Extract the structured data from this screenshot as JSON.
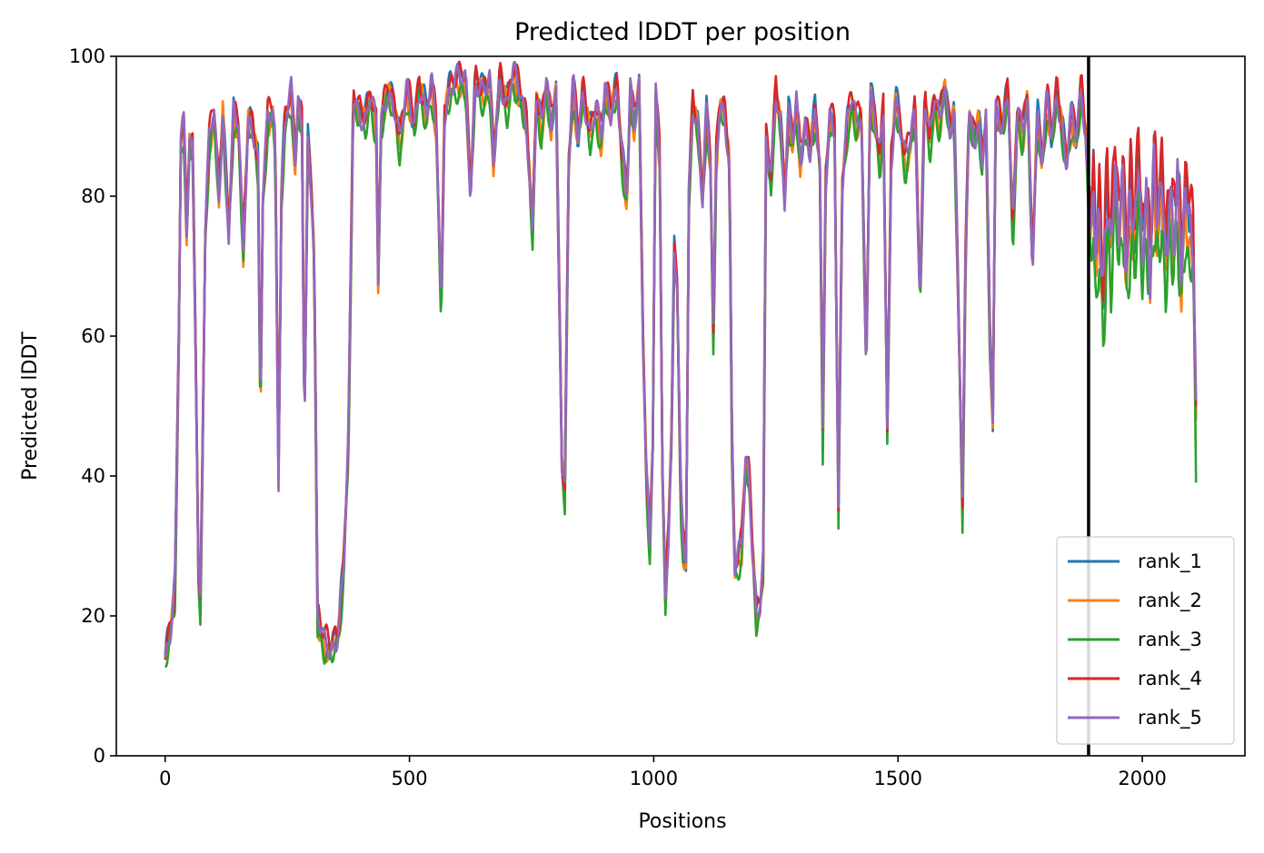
{
  "chart_data": {
    "type": "line",
    "title": "Predicted lDDT per position",
    "xlabel": "Positions",
    "ylabel": "Predicted lDDT",
    "xlim": [
      -100,
      2210
    ],
    "ylim": [
      0,
      100
    ],
    "xticks": [
      0,
      500,
      1000,
      1500,
      2000
    ],
    "yticks": [
      0,
      20,
      40,
      60,
      80,
      100
    ],
    "grid": false,
    "legend_position": "lower-right",
    "chain_boundary_x": 1890,
    "series": [
      {
        "name": "rank_1",
        "color": "#1f77b4",
        "offset": 0.8
      },
      {
        "name": "rank_2",
        "color": "#ff7f0e",
        "offset": -1.0
      },
      {
        "name": "rank_3",
        "color": "#2ca02c",
        "offset": -2.5
      },
      {
        "name": "rank_4",
        "color": "#d62728",
        "offset": 1.5
      },
      {
        "name": "rank_5",
        "color": "#9467bd",
        "offset": 0.0
      }
    ],
    "base_profile": [
      [
        0,
        14
      ],
      [
        10,
        18
      ],
      [
        20,
        24
      ],
      [
        28,
        60
      ],
      [
        32,
        88
      ],
      [
        38,
        90
      ],
      [
        44,
        75
      ],
      [
        50,
        88
      ],
      [
        56,
        87
      ],
      [
        62,
        60
      ],
      [
        68,
        27
      ],
      [
        72,
        22
      ],
      [
        76,
        40
      ],
      [
        82,
        75
      ],
      [
        90,
        88
      ],
      [
        100,
        92
      ],
      [
        110,
        80
      ],
      [
        118,
        92
      ],
      [
        130,
        75
      ],
      [
        140,
        92
      ],
      [
        150,
        90
      ],
      [
        160,
        72
      ],
      [
        170,
        91
      ],
      [
        180,
        90
      ],
      [
        190,
        85
      ],
      [
        195,
        48
      ],
      [
        200,
        80
      ],
      [
        210,
        91
      ],
      [
        220,
        92
      ],
      [
        225,
        88
      ],
      [
        232,
        40
      ],
      [
        238,
        80
      ],
      [
        245,
        91
      ],
      [
        258,
        95
      ],
      [
        266,
        85
      ],
      [
        272,
        93
      ],
      [
        280,
        90
      ],
      [
        285,
        46
      ],
      [
        292,
        88
      ],
      [
        300,
        80
      ],
      [
        305,
        72
      ],
      [
        312,
        20
      ],
      [
        325,
        16
      ],
      [
        340,
        15
      ],
      [
        355,
        18
      ],
      [
        365,
        27
      ],
      [
        375,
        45
      ],
      [
        385,
        94
      ],
      [
        395,
        92
      ],
      [
        410,
        91
      ],
      [
        420,
        95
      ],
      [
        432,
        90
      ],
      [
        436,
        68
      ],
      [
        442,
        90
      ],
      [
        455,
        95
      ],
      [
        470,
        93
      ],
      [
        480,
        88
      ],
      [
        495,
        95
      ],
      [
        510,
        90
      ],
      [
        520,
        96
      ],
      [
        535,
        92
      ],
      [
        545,
        96
      ],
      [
        555,
        90
      ],
      [
        565,
        63
      ],
      [
        572,
        92
      ],
      [
        585,
        96
      ],
      [
        600,
        97
      ],
      [
        615,
        96
      ],
      [
        625,
        80
      ],
      [
        635,
        97
      ],
      [
        650,
        95
      ],
      [
        665,
        96
      ],
      [
        672,
        85
      ],
      [
        685,
        97
      ],
      [
        700,
        93
      ],
      [
        712,
        98
      ],
      [
        725,
        95
      ],
      [
        740,
        90
      ],
      [
        748,
        80
      ],
      [
        752,
        75
      ],
      [
        760,
        95
      ],
      [
        770,
        90
      ],
      [
        780,
        96
      ],
      [
        790,
        90
      ],
      [
        800,
        95
      ],
      [
        808,
        60
      ],
      [
        812,
        42
      ],
      [
        818,
        38
      ],
      [
        826,
        85
      ],
      [
        835,
        96
      ],
      [
        845,
        88
      ],
      [
        855,
        95
      ],
      [
        870,
        89
      ],
      [
        882,
        93
      ],
      [
        893,
        88
      ],
      [
        900,
        95
      ],
      [
        912,
        92
      ],
      [
        925,
        96
      ],
      [
        935,
        86
      ],
      [
        945,
        80
      ],
      [
        952,
        95
      ],
      [
        960,
        90
      ],
      [
        970,
        96
      ],
      [
        978,
        60
      ],
      [
        985,
        40
      ],
      [
        992,
        30
      ],
      [
        998,
        45
      ],
      [
        1004,
        94
      ],
      [
        1012,
        86
      ],
      [
        1018,
        40
      ],
      [
        1024,
        22
      ],
      [
        1030,
        32
      ],
      [
        1036,
        45
      ],
      [
        1042,
        72
      ],
      [
        1048,
        68
      ],
      [
        1055,
        38
      ],
      [
        1060,
        30
      ],
      [
        1066,
        28
      ],
      [
        1072,
        80
      ],
      [
        1080,
        93
      ],
      [
        1090,
        90
      ],
      [
        1100,
        80
      ],
      [
        1108,
        92
      ],
      [
        1116,
        85
      ],
      [
        1122,
        60
      ],
      [
        1128,
        85
      ],
      [
        1135,
        93
      ],
      [
        1145,
        92
      ],
      [
        1155,
        85
      ],
      [
        1160,
        45
      ],
      [
        1166,
        27
      ],
      [
        1172,
        28
      ],
      [
        1180,
        30
      ],
      [
        1188,
        42
      ],
      [
        1195,
        40
      ],
      [
        1202,
        30
      ],
      [
        1210,
        20
      ],
      [
        1218,
        22
      ],
      [
        1224,
        28
      ],
      [
        1230,
        88
      ],
      [
        1240,
        82
      ],
      [
        1250,
        95
      ],
      [
        1260,
        90
      ],
      [
        1268,
        80
      ],
      [
        1276,
        92
      ],
      [
        1285,
        88
      ],
      [
        1292,
        93
      ],
      [
        1300,
        85
      ],
      [
        1310,
        90
      ],
      [
        1320,
        87
      ],
      [
        1330,
        92
      ],
      [
        1340,
        85
      ],
      [
        1346,
        45
      ],
      [
        1352,
        82
      ],
      [
        1360,
        91
      ],
      [
        1370,
        90
      ],
      [
        1378,
        35
      ],
      [
        1386,
        82
      ],
      [
        1395,
        90
      ],
      [
        1405,
        94
      ],
      [
        1415,
        90
      ],
      [
        1425,
        92
      ],
      [
        1435,
        55
      ],
      [
        1443,
        95
      ],
      [
        1455,
        90
      ],
      [
        1463,
        85
      ],
      [
        1470,
        92
      ],
      [
        1478,
        46
      ],
      [
        1486,
        85
      ],
      [
        1495,
        94
      ],
      [
        1505,
        90
      ],
      [
        1515,
        85
      ],
      [
        1525,
        88
      ],
      [
        1535,
        92
      ],
      [
        1545,
        65
      ],
      [
        1555,
        95
      ],
      [
        1565,
        88
      ],
      [
        1575,
        94
      ],
      [
        1585,
        90
      ],
      [
        1595,
        96
      ],
      [
        1605,
        90
      ],
      [
        1615,
        92
      ],
      [
        1625,
        60
      ],
      [
        1632,
        35
      ],
      [
        1638,
        70
      ],
      [
        1645,
        92
      ],
      [
        1655,
        88
      ],
      [
        1665,
        91
      ],
      [
        1672,
        85
      ],
      [
        1680,
        92
      ],
      [
        1688,
        60
      ],
      [
        1694,
        48
      ],
      [
        1700,
        92
      ],
      [
        1715,
        90
      ],
      [
        1725,
        96
      ],
      [
        1735,
        75
      ],
      [
        1745,
        93
      ],
      [
        1755,
        88
      ],
      [
        1765,
        95
      ],
      [
        1775,
        70
      ],
      [
        1785,
        92
      ],
      [
        1795,
        85
      ],
      [
        1805,
        94
      ],
      [
        1815,
        88
      ],
      [
        1825,
        95
      ],
      [
        1835,
        90
      ],
      [
        1845,
        85
      ],
      [
        1855,
        92
      ],
      [
        1865,
        88
      ],
      [
        1875,
        95
      ],
      [
        1885,
        88
      ],
      [
        1890,
        80
      ],
      [
        1895,
        75
      ],
      [
        1900,
        82
      ],
      [
        1905,
        70
      ],
      [
        1912,
        78
      ],
      [
        1920,
        65
      ],
      [
        1928,
        80
      ],
      [
        1936,
        72
      ],
      [
        1944,
        85
      ],
      [
        1952,
        76
      ],
      [
        1960,
        82
      ],
      [
        1968,
        70
      ],
      [
        1976,
        80
      ],
      [
        1984,
        74
      ],
      [
        1992,
        85
      ],
      [
        2000,
        72
      ],
      [
        2008,
        80
      ],
      [
        2016,
        70
      ],
      [
        2024,
        84
      ],
      [
        2032,
        76
      ],
      [
        2040,
        82
      ],
      [
        2048,
        70
      ],
      [
        2056,
        80
      ],
      [
        2064,
        75
      ],
      [
        2072,
        82
      ],
      [
        2080,
        70
      ],
      [
        2088,
        80
      ],
      [
        2096,
        76
      ],
      [
        2104,
        74
      ],
      [
        2110,
        47
      ]
    ]
  }
}
